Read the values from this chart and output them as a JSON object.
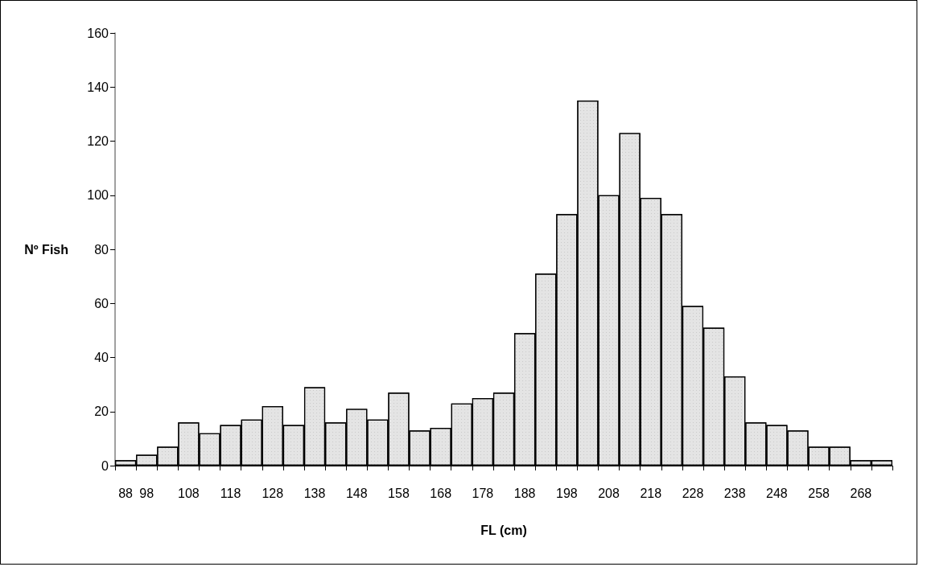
{
  "chart_data": {
    "type": "bar",
    "xlabel": "FL (cm)",
    "ylabel": "Nº Fish",
    "categories": [
      "88",
      "98",
      null,
      "108",
      null,
      "118",
      null,
      "128",
      null,
      "138",
      null,
      "148",
      null,
      "158",
      null,
      "168",
      null,
      "178",
      null,
      "188",
      null,
      "198",
      null,
      "208",
      null,
      "218",
      null,
      "228",
      null,
      "238",
      null,
      "248",
      null,
      "258",
      null,
      "268",
      null
    ],
    "values": [
      2,
      4,
      7,
      16,
      12,
      15,
      17,
      22,
      15,
      29,
      16,
      21,
      17,
      27,
      13,
      14,
      23,
      25,
      27,
      49,
      71,
      93,
      135,
      100,
      123,
      99,
      93,
      59,
      51,
      33,
      16,
      15,
      13,
      7,
      7,
      2,
      2
    ],
    "color": "#e4e4e4",
    "ylim": [
      0,
      160
    ],
    "yticks": [
      0,
      20,
      40,
      60,
      80,
      100,
      120,
      140,
      160
    ],
    "grid": false
  }
}
